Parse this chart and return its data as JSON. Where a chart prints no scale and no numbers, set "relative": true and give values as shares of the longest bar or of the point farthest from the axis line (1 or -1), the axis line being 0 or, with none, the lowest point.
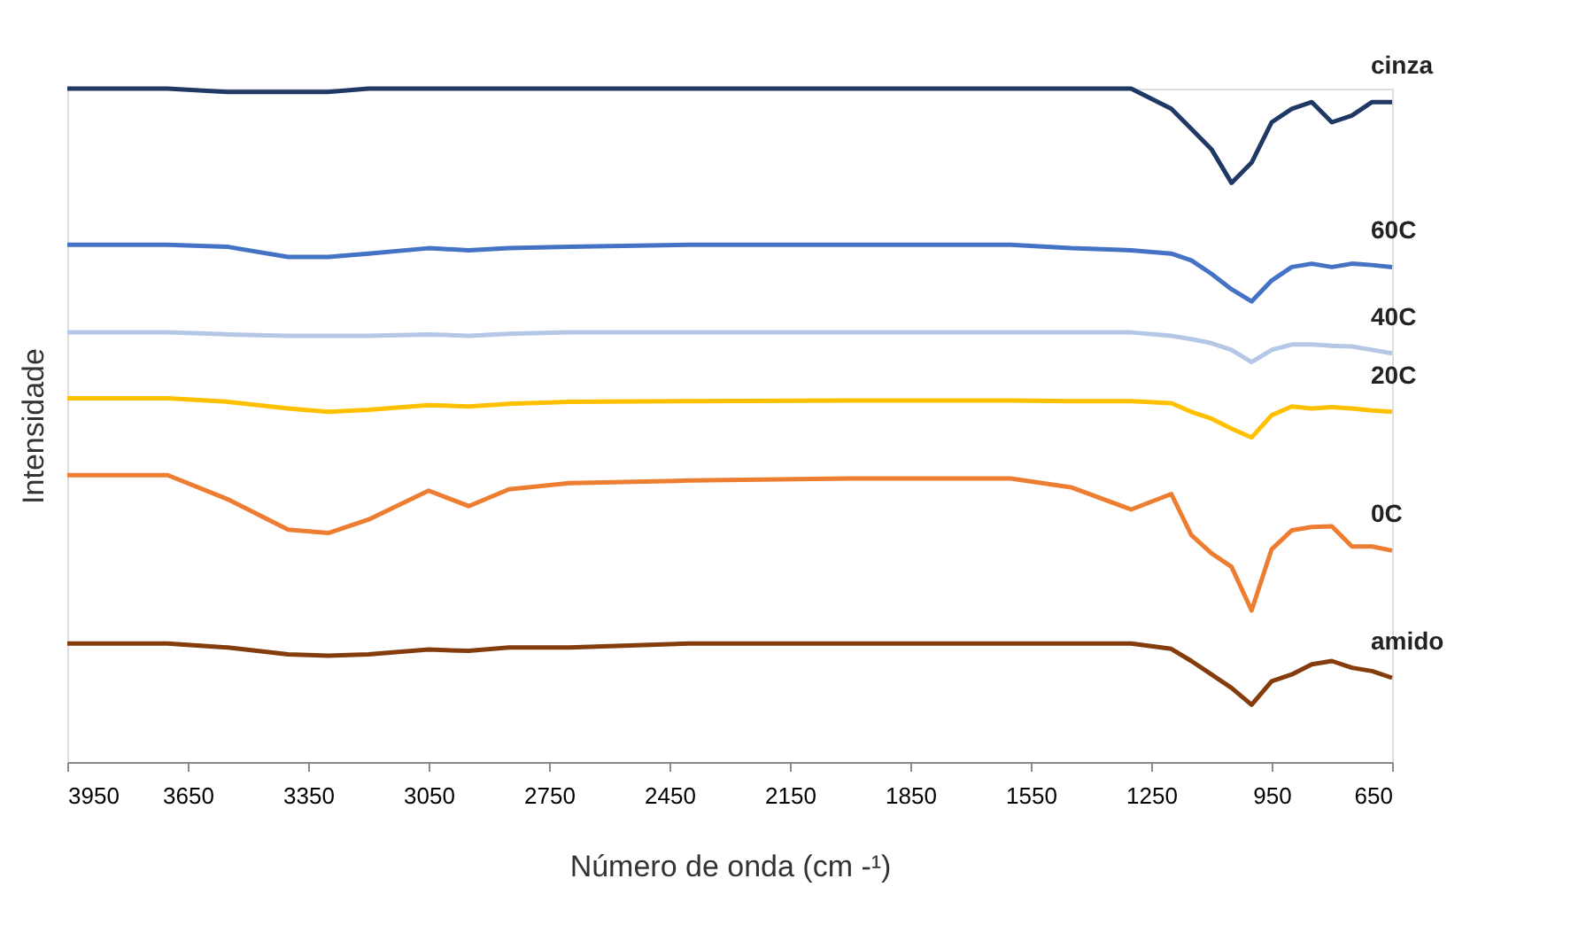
{
  "chart_data": {
    "type": "line",
    "xlabel": "Número de onda (cm -¹)",
    "ylabel": "Intensidade",
    "relative": true,
    "legend": false,
    "grid": false,
    "marker": "none",
    "line_style": "solid",
    "xlim": [
      3950,
      650
    ],
    "xticks": [
      3950,
      3650,
      3350,
      3050,
      2750,
      2450,
      2150,
      1850,
      1550,
      1250,
      950,
      650
    ],
    "x": [
      3950,
      3700,
      3550,
      3400,
      3300,
      3200,
      3050,
      2950,
      2850,
      2700,
      2400,
      2000,
      1600,
      1450,
      1300,
      1200,
      1150,
      1100,
      1050,
      1000,
      950,
      900,
      850,
      800,
      750,
      700,
      650
    ],
    "series": [
      {
        "name": "cinza",
        "color": "#1f3864",
        "values": [
          1,
          1,
          0.995,
          0.995,
          0.995,
          1,
          1,
          1,
          1,
          1,
          1,
          1,
          1,
          1,
          1,
          0.97,
          0.94,
          0.91,
          0.86,
          0.89,
          0.95,
          0.97,
          0.98,
          0.95,
          0.96,
          0.98,
          0.98
        ]
      },
      {
        "name": "60C",
        "color": "#4472c4",
        "values": [
          0.768,
          0.768,
          0.765,
          0.75,
          0.75,
          0.755,
          0.763,
          0.76,
          0.763,
          0.765,
          0.768,
          0.768,
          0.768,
          0.763,
          0.76,
          0.755,
          0.745,
          0.725,
          0.702,
          0.684,
          0.715,
          0.735,
          0.74,
          0.735,
          0.74,
          0.738,
          0.735
        ]
      },
      {
        "name": "40C",
        "color": "#b4c7e7",
        "values": [
          0.638,
          0.638,
          0.635,
          0.633,
          0.633,
          0.633,
          0.635,
          0.633,
          0.636,
          0.638,
          0.638,
          0.638,
          0.638,
          0.638,
          0.638,
          0.633,
          0.628,
          0.622,
          0.612,
          0.594,
          0.612,
          0.62,
          0.62,
          0.618,
          0.617,
          0.612,
          0.607
        ]
      },
      {
        "name": "20C",
        "color": "#ffc000",
        "values": [
          0.54,
          0.54,
          0.535,
          0.525,
          0.52,
          0.523,
          0.53,
          0.528,
          0.532,
          0.535,
          0.536,
          0.537,
          0.537,
          0.536,
          0.536,
          0.533,
          0.52,
          0.51,
          0.495,
          0.482,
          0.515,
          0.528,
          0.525,
          0.527,
          0.525,
          0.522,
          0.52
        ]
      },
      {
        "name": "0C",
        "color": "#ed7d31",
        "values": [
          0.426,
          0.426,
          0.39,
          0.345,
          0.34,
          0.36,
          0.403,
          0.38,
          0.405,
          0.414,
          0.418,
          0.421,
          0.421,
          0.408,
          0.375,
          0.398,
          0.337,
          0.31,
          0.29,
          0.225,
          0.316,
          0.344,
          0.349,
          0.35,
          0.32,
          0.32,
          0.314
        ]
      },
      {
        "name": "amido",
        "color": "#843c0c",
        "values": [
          0.176,
          0.176,
          0.17,
          0.16,
          0.158,
          0.16,
          0.167,
          0.165,
          0.17,
          0.17,
          0.176,
          0.176,
          0.176,
          0.176,
          0.176,
          0.168,
          0.15,
          0.13,
          0.11,
          0.085,
          0.12,
          0.13,
          0.145,
          0.15,
          0.14,
          0.135,
          0.125
        ]
      }
    ]
  }
}
